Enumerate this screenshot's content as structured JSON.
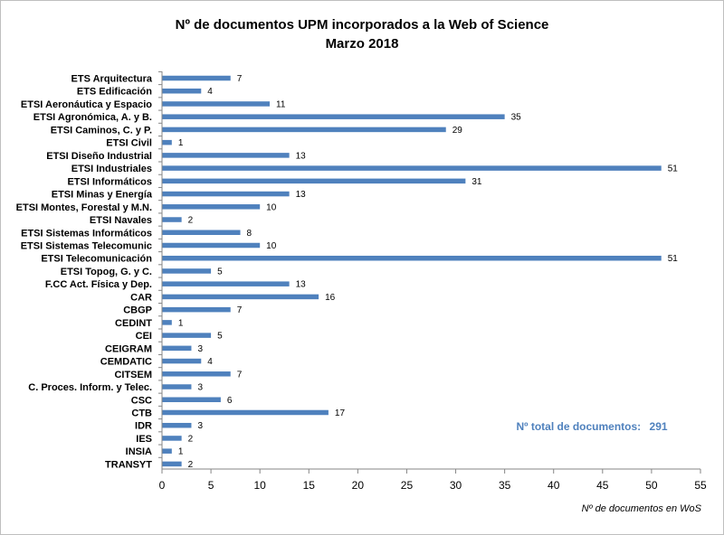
{
  "chart_data": {
    "type": "bar",
    "orientation": "horizontal",
    "title": [
      "Nº de documentos UPM incorporados a la Web of Science",
      "Marzo 2018"
    ],
    "xlabel": "Nº de documentos en WoS",
    "ylabel": "",
    "xlim": [
      0,
      55
    ],
    "xticks": [
      0,
      5,
      10,
      15,
      20,
      25,
      30,
      35,
      40,
      45,
      50,
      55
    ],
    "grid": false,
    "legend": "none",
    "bar_color": "#4F81BD",
    "categories": [
      "ETS Arquitectura",
      "ETS Edificación",
      "ETSI Aeronáutica y Espacio",
      "ETSI Agronómica, A. y B.",
      "ETSI Caminos, C. y P.",
      "ETSI Civil",
      "ETSI Diseño Industrial",
      "ETSI Industriales",
      "ETSI Informáticos",
      "ETSI Minas y Energía",
      "ETSI Montes, Forestal y M.N.",
      "ETSI Navales",
      "ETSI Sistemas Informáticos",
      "ETSI Sistemas Telecomunic",
      "ETSI Telecomunicación",
      "ETSI Topog, G. y C.",
      "F.CC Act. Física y Dep.",
      "CAR",
      "CBGP",
      "CEDINT",
      "CEI",
      "CEIGRAM",
      "CEMDATIC",
      "CITSEM",
      "C. Proces. Inform. y Telec.",
      "CSC",
      "CTB",
      "IDR",
      "IES",
      "INSIA",
      "TRANSYT"
    ],
    "values": [
      7,
      4,
      11,
      35,
      29,
      1,
      13,
      51,
      31,
      13,
      10,
      2,
      8,
      10,
      51,
      5,
      13,
      16,
      7,
      1,
      5,
      3,
      4,
      7,
      3,
      6,
      17,
      3,
      2,
      1,
      2
    ],
    "annotation": {
      "label": "Nº total de documentos:",
      "value": "291",
      "color": "#4F81BD"
    }
  }
}
